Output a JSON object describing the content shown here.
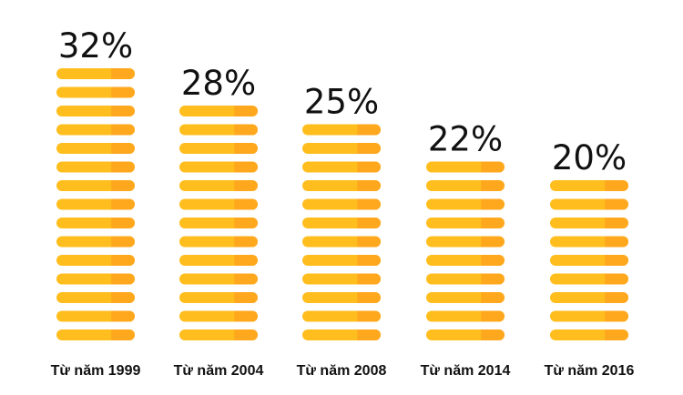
{
  "chart_data": {
    "type": "bar",
    "categories": [
      "Từ năm 1999",
      "Từ năm 2004",
      "Từ năm 2008",
      "Từ năm 2014",
      "Từ năm 2016"
    ],
    "values": [
      32,
      28,
      25,
      22,
      20
    ],
    "value_labels": [
      "32%",
      "28%",
      "25%",
      "22%",
      "20%"
    ],
    "title": "",
    "xlabel": "",
    "ylabel": "",
    "grid": false,
    "legend": "none",
    "mark_style": "stacked coins",
    "colors": {
      "bar_main": "#FFBE1E",
      "bar_shade": "#FFA81E",
      "background": "#FFFFFF",
      "text": "#111111"
    }
  }
}
